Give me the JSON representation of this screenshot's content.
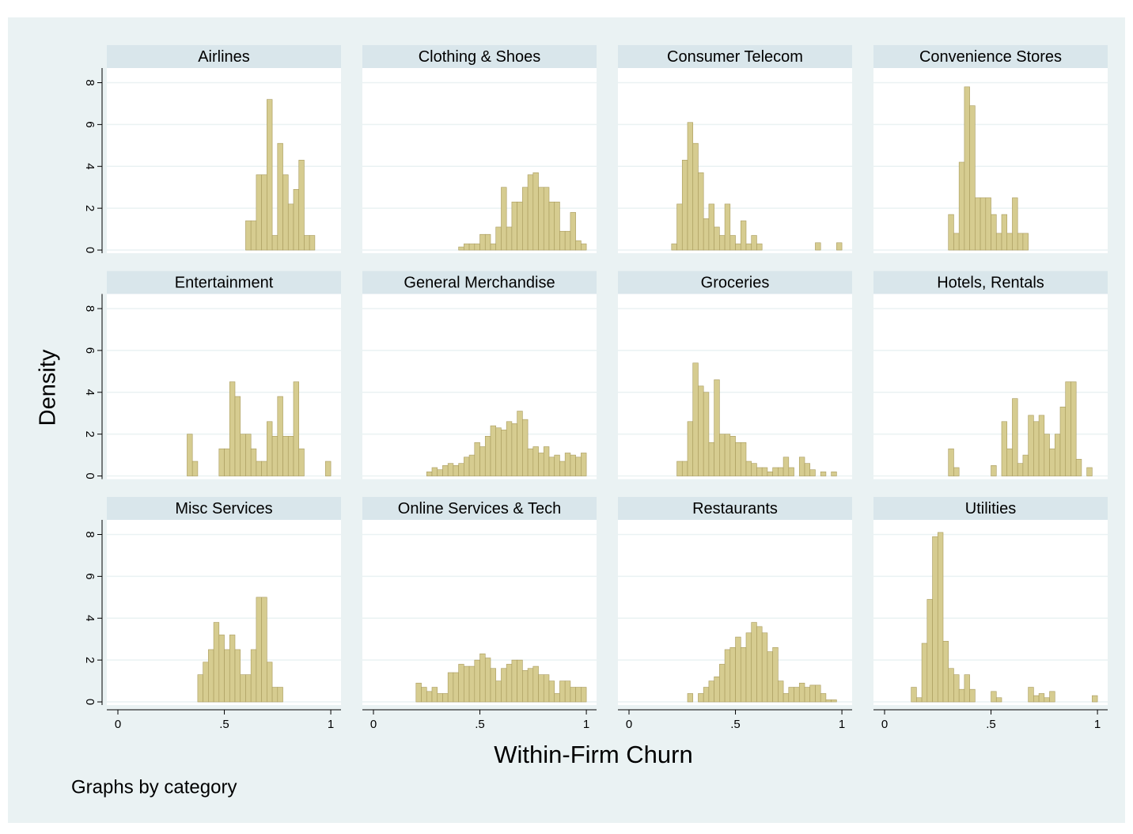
{
  "figure": {
    "ylabel": "Density",
    "xlabel": "Within-Firm Churn",
    "note": "Graphs by category",
    "xlim": [
      -0.052,
      1.048
    ],
    "ylim": [
      -0.15,
      8.7
    ],
    "xticks": [
      0,
      {
        "value": 0.5,
        "label": ".5"
      },
      1
    ],
    "yticks": [
      0,
      2,
      4,
      6,
      8
    ],
    "grid": true
  },
  "chart_data": [
    {
      "type": "histogram",
      "title": "Airlines",
      "color": "#d6cc90",
      "bins": [
        0.6,
        0.625,
        0.65,
        0.675,
        0.7,
        0.725,
        0.75,
        0.775,
        0.8,
        0.825,
        0.85,
        0.875,
        0.9,
        0.925
      ],
      "values": [
        1.4,
        1.4,
        3.6,
        3.6,
        7.2,
        0.7,
        5.1,
        3.6,
        2.2,
        2.9,
        4.3,
        0.7,
        0.7
      ]
    },
    {
      "type": "histogram",
      "title": "Clothing & Shoes",
      "color": "#d6cc90",
      "bins": [
        0.4,
        0.425,
        0.45,
        0.475,
        0.5,
        0.525,
        0.55,
        0.575,
        0.6,
        0.625,
        0.65,
        0.675,
        0.7,
        0.725,
        0.75,
        0.775,
        0.8,
        0.825,
        0.85,
        0.875,
        0.9,
        0.925,
        0.95,
        0.975,
        1.0
      ],
      "values": [
        0.15,
        0.3,
        0.3,
        0.3,
        0.75,
        0.75,
        0.3,
        1.1,
        3.0,
        1.1,
        2.3,
        2.3,
        3.0,
        3.6,
        3.7,
        3.0,
        3.0,
        2.3,
        2.3,
        0.9,
        0.9,
        1.8,
        0.45,
        0.3
      ]
    },
    {
      "type": "histogram",
      "title": "Consumer Telecom",
      "color": "#d6cc90",
      "bins": [
        0.2,
        0.225,
        0.25,
        0.275,
        0.3,
        0.325,
        0.35,
        0.375,
        0.4,
        0.425,
        0.45,
        0.475,
        0.5,
        0.525,
        0.55,
        0.575,
        0.6,
        0.625,
        0.65,
        0.675,
        0.7,
        0.725,
        0.75,
        0.775,
        0.8,
        0.825,
        0.85,
        0.875,
        0.9,
        0.925,
        0.95,
        0.975,
        1.0
      ],
      "values": [
        0.3,
        2.2,
        4.3,
        6.1,
        5.1,
        3.7,
        1.5,
        2.2,
        1.1,
        0.7,
        2.2,
        0.7,
        0.3,
        1.4,
        0.3,
        0.7,
        0.3,
        0,
        0,
        0,
        0,
        0,
        0,
        0,
        0,
        0,
        0,
        0.35,
        0,
        0,
        0,
        0.35
      ]
    },
    {
      "type": "histogram",
      "title": "Convenience Stores",
      "color": "#d6cc90",
      "bins": [
        0.3,
        0.325,
        0.35,
        0.375,
        0.4,
        0.425,
        0.45,
        0.475,
        0.5,
        0.525,
        0.55,
        0.575,
        0.6,
        0.625,
        0.65,
        0.675
      ],
      "values": [
        1.7,
        0.8,
        4.2,
        7.8,
        6.9,
        2.5,
        2.5,
        2.5,
        1.7,
        0.8,
        1.7,
        0.8,
        2.5,
        0.8,
        0.8
      ]
    },
    {
      "type": "histogram",
      "title": "Entertainment",
      "color": "#d6cc90",
      "bins": [
        0.325,
        0.35,
        0.375,
        0.4,
        0.425,
        0.45,
        0.475,
        0.5,
        0.525,
        0.55,
        0.575,
        0.6,
        0.625,
        0.65,
        0.675,
        0.7,
        0.725,
        0.75,
        0.775,
        0.8,
        0.825,
        0.85,
        0.875,
        0.9,
        0.925,
        0.95,
        0.975,
        1.0
      ],
      "values": [
        2.0,
        0.7,
        0,
        0,
        0,
        0,
        1.3,
        1.3,
        4.5,
        3.8,
        2.0,
        2.0,
        1.3,
        0.7,
        0.7,
        2.6,
        1.9,
        3.8,
        1.9,
        1.9,
        4.5,
        1.3,
        0,
        0,
        0,
        0,
        0.7
      ]
    },
    {
      "type": "histogram",
      "title": "General Merchandise",
      "color": "#d6cc90",
      "bins": [
        0.25,
        0.275,
        0.3,
        0.325,
        0.35,
        0.375,
        0.4,
        0.425,
        0.45,
        0.475,
        0.5,
        0.525,
        0.55,
        0.575,
        0.6,
        0.625,
        0.65,
        0.675,
        0.7,
        0.725,
        0.75,
        0.775,
        0.8,
        0.825,
        0.85,
        0.875,
        0.9,
        0.925,
        0.95,
        0.975,
        1.0
      ],
      "values": [
        0.2,
        0.4,
        0.3,
        0.5,
        0.6,
        0.5,
        0.6,
        0.9,
        1.0,
        1.6,
        1.4,
        1.9,
        2.4,
        2.3,
        2.2,
        2.6,
        2.5,
        3.1,
        2.7,
        1.3,
        1.4,
        1.1,
        1.4,
        0.9,
        1.0,
        0.7,
        1.1,
        1.0,
        0.9,
        1.1
      ]
    },
    {
      "type": "histogram",
      "title": "Groceries",
      "color": "#d6cc90",
      "bins": [
        0.225,
        0.25,
        0.275,
        0.3,
        0.325,
        0.35,
        0.375,
        0.4,
        0.425,
        0.45,
        0.475,
        0.5,
        0.525,
        0.55,
        0.575,
        0.6,
        0.625,
        0.65,
        0.675,
        0.7,
        0.725,
        0.75,
        0.775,
        0.8,
        0.825,
        0.85,
        0.875,
        0.9,
        0.925,
        0.95,
        0.975
      ],
      "values": [
        0.7,
        0.7,
        2.6,
        5.4,
        4.3,
        4.0,
        1.6,
        4.6,
        2.0,
        2.0,
        1.9,
        1.6,
        1.6,
        0.7,
        0.6,
        0.4,
        0.4,
        0.2,
        0.4,
        0.4,
        0.9,
        0.4,
        0,
        0.9,
        0.6,
        0.3,
        0,
        0.2,
        0,
        0.2
      ]
    },
    {
      "type": "histogram",
      "title": "Hotels, Rentals",
      "color": "#d6cc90",
      "bins": [
        0.3,
        0.325,
        0.35,
        0.375,
        0.4,
        0.425,
        0.45,
        0.475,
        0.5,
        0.525,
        0.55,
        0.575,
        0.6,
        0.625,
        0.65,
        0.675,
        0.7,
        0.725,
        0.75,
        0.775,
        0.8,
        0.825,
        0.85,
        0.875,
        0.9,
        0.925,
        0.95,
        0.975
      ],
      "values": [
        1.3,
        0.4,
        0,
        0,
        0,
        0,
        0,
        0,
        0.5,
        0,
        2.6,
        1.3,
        3.7,
        0.6,
        1.0,
        2.9,
        2.6,
        2.9,
        2.0,
        1.3,
        2.0,
        3.3,
        4.5,
        4.5,
        0.8,
        0,
        0.4
      ]
    },
    {
      "type": "histogram",
      "title": "Misc Services",
      "color": "#d6cc90",
      "bins": [
        0.375,
        0.4,
        0.425,
        0.45,
        0.475,
        0.5,
        0.525,
        0.55,
        0.575,
        0.6,
        0.625,
        0.65,
        0.675,
        0.7,
        0.725,
        0.75,
        0.775
      ],
      "values": [
        1.3,
        1.9,
        2.5,
        3.8,
        3.2,
        2.5,
        3.2,
        2.5,
        1.3,
        1.3,
        2.5,
        5.0,
        5.0,
        1.9,
        0.7,
        0.7
      ]
    },
    {
      "type": "histogram",
      "title": "Online Services & Tech",
      "color": "#d6cc90",
      "bins": [
        0.2,
        0.225,
        0.25,
        0.275,
        0.3,
        0.325,
        0.35,
        0.375,
        0.4,
        0.425,
        0.45,
        0.475,
        0.5,
        0.525,
        0.55,
        0.575,
        0.6,
        0.625,
        0.65,
        0.675,
        0.7,
        0.725,
        0.75,
        0.775,
        0.8,
        0.825,
        0.85,
        0.875,
        0.9,
        0.925,
        0.95,
        0.975,
        1.0
      ],
      "values": [
        0.9,
        0.7,
        0.5,
        0.7,
        0.4,
        0.4,
        1.4,
        1.4,
        1.8,
        1.7,
        1.7,
        2.0,
        2.3,
        2.1,
        1.6,
        1.0,
        1.6,
        1.8,
        2.0,
        2.0,
        1.5,
        1.6,
        1.7,
        1.3,
        1.3,
        1.0,
        0.4,
        1.0,
        1.0,
        0.7,
        0.7,
        0.7
      ]
    },
    {
      "type": "histogram",
      "title": "Restaurants",
      "color": "#d6cc90",
      "bins": [
        0.275,
        0.3,
        0.325,
        0.35,
        0.375,
        0.4,
        0.425,
        0.45,
        0.475,
        0.5,
        0.525,
        0.55,
        0.575,
        0.6,
        0.625,
        0.65,
        0.675,
        0.7,
        0.725,
        0.75,
        0.775,
        0.8,
        0.825,
        0.85,
        0.875,
        0.9,
        0.925,
        0.95,
        0.975
      ],
      "values": [
        0.4,
        0,
        0.4,
        0.7,
        1.0,
        1.2,
        1.8,
        2.5,
        2.6,
        3.1,
        2.6,
        3.3,
        3.8,
        3.6,
        3.3,
        2.4,
        2.6,
        1.0,
        0.4,
        0.7,
        0.7,
        0.9,
        0.7,
        0.8,
        0.8,
        0.4,
        0.1,
        0.1
      ]
    },
    {
      "type": "histogram",
      "title": "Utilities",
      "color": "#d6cc90",
      "bins": [
        0.125,
        0.15,
        0.175,
        0.2,
        0.225,
        0.25,
        0.275,
        0.3,
        0.325,
        0.35,
        0.375,
        0.4,
        0.425,
        0.45,
        0.475,
        0.5,
        0.525,
        0.55,
        0.575,
        0.6,
        0.625,
        0.65,
        0.675,
        0.7,
        0.725,
        0.75,
        0.775,
        0.8,
        0.825,
        0.85,
        0.875,
        0.9,
        0.925,
        0.95,
        0.975,
        1.0
      ],
      "values": [
        0.7,
        0.2,
        2.8,
        4.9,
        7.9,
        8.1,
        2.9,
        1.6,
        1.3,
        0.6,
        1.3,
        0.6,
        0,
        0,
        0,
        0.5,
        0.2,
        0,
        0,
        0,
        0,
        0,
        0.7,
        0.3,
        0.4,
        0.2,
        0.5,
        0,
        0,
        0,
        0,
        0,
        0,
        0,
        0.3
      ]
    }
  ]
}
